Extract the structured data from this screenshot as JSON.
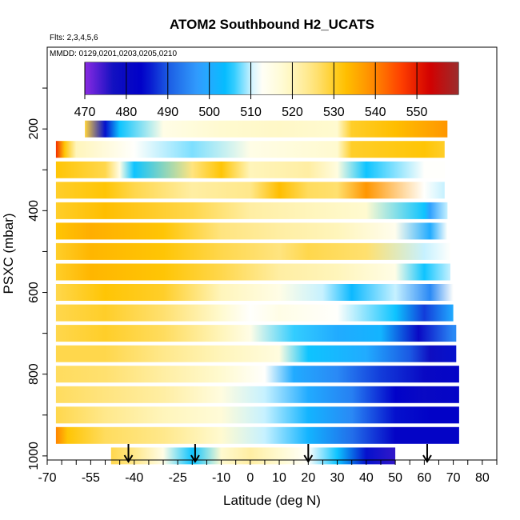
{
  "chart_data": {
    "type": "heatmap",
    "title": "ATOM2 Southbound H2_UCATS",
    "subtitle_flights": "Flts: 2,3,4,5,6",
    "subtitle_dates": "MMDD: 0129,0201,0203,0205,0210",
    "xlabel": "Latitude (deg N)",
    "ylabel": "PSXC (mbar)",
    "xlim": [
      -70,
      85
    ],
    "ylim": [
      1010,
      0
    ],
    "x_ticks": [
      -70,
      -55,
      -40,
      -25,
      -10,
      0,
      10,
      20,
      30,
      40,
      50,
      60,
      70,
      80
    ],
    "y_ticks": [
      200,
      400,
      600,
      800,
      1000
    ],
    "colorbar": {
      "min": 470,
      "max": 560,
      "ticks": [
        470,
        480,
        490,
        500,
        510,
        520,
        530,
        540,
        550
      ],
      "colors": [
        "#8a2be2",
        "#1010c0",
        "#0000c8",
        "#1e64e6",
        "#32a0ff",
        "#00c0ff",
        "#ffffff",
        "#fffacd",
        "#ffe37a",
        "#ffc400",
        "#ff8c00",
        "#ff4000",
        "#d20000",
        "#9b2d2d"
      ]
    },
    "arrows_latitude": [
      -42,
      -19,
      20,
      61
    ],
    "rows": [
      {
        "p": 200,
        "lat0": -57,
        "lat1": 68,
        "lats": [
          -57,
          -50,
          -45,
          -30,
          -10,
          10,
          30,
          35,
          50,
          68
        ],
        "values": [
          529,
          485,
          505,
          515,
          518,
          519,
          518,
          530,
          533,
          538
        ]
      },
      {
        "p": 250,
        "lat0": -67,
        "lat1": 67,
        "lats": [
          -67,
          -64,
          -60,
          -40,
          -20,
          0,
          30,
          35,
          60,
          67
        ],
        "values": [
          548,
          532,
          520,
          512,
          508,
          515,
          518,
          530,
          532,
          530
        ]
      },
      {
        "p": 300,
        "lat0": -67,
        "lat1": 67,
        "lats": [
          -67,
          -50,
          -45,
          -40,
          -20,
          -10,
          0,
          20,
          30,
          40,
          60,
          67
        ],
        "values": [
          532,
          528,
          515,
          505,
          525,
          532,
          520,
          522,
          516,
          505,
          512,
          512
        ]
      },
      {
        "p": 350,
        "lat0": -67,
        "lat1": 67,
        "lats": [
          -67,
          -50,
          -40,
          -20,
          0,
          10,
          20,
          30,
          40,
          60,
          67
        ],
        "values": [
          530,
          532,
          528,
          522,
          524,
          533,
          527,
          526,
          538,
          512,
          510
        ]
      },
      {
        "p": 400,
        "lat0": -67,
        "lat1": 68,
        "lats": [
          -67,
          -50,
          -20,
          0,
          20,
          40,
          60,
          62,
          68
        ],
        "values": [
          530,
          533,
          528,
          522,
          520,
          518,
          505,
          498,
          510
        ]
      },
      {
        "p": 450,
        "lat0": -67,
        "lat1": 68,
        "lats": [
          -67,
          -55,
          -30,
          -10,
          10,
          30,
          50,
          62,
          68
        ],
        "values": [
          532,
          535,
          532,
          525,
          522,
          520,
          514,
          500,
          512
        ]
      },
      {
        "p": 500,
        "lat0": -67,
        "lat1": 69,
        "lats": [
          -67,
          -55,
          -30,
          -10,
          10,
          20,
          40,
          60,
          69
        ],
        "values": [
          530,
          534,
          532,
          528,
          525,
          528,
          526,
          510,
          512
        ]
      },
      {
        "p": 550,
        "lat0": -67,
        "lat1": 69,
        "lats": [
          -67,
          -55,
          -30,
          -10,
          10,
          30,
          50,
          60,
          69
        ],
        "values": [
          530,
          534,
          532,
          528,
          522,
          520,
          515,
          505,
          510
        ]
      },
      {
        "p": 600,
        "lat0": -67,
        "lat1": 70,
        "lats": [
          -67,
          -50,
          -30,
          -10,
          10,
          25,
          35,
          50,
          62,
          70
        ],
        "values": [
          528,
          532,
          530,
          520,
          515,
          510,
          503,
          510,
          495,
          512
        ]
      },
      {
        "p": 650,
        "lat0": -67,
        "lat1": 70,
        "lats": [
          -67,
          -50,
          -30,
          -10,
          0,
          10,
          30,
          50,
          60,
          70
        ],
        "values": [
          528,
          530,
          526,
          518,
          512,
          515,
          512,
          505,
          488,
          500
        ]
      },
      {
        "p": 700,
        "lat0": -67,
        "lat1": 71,
        "lats": [
          -67,
          -50,
          -30,
          -10,
          0,
          15,
          30,
          45,
          58,
          70
        ],
        "values": [
          528,
          530,
          527,
          520,
          515,
          506,
          500,
          502,
          480,
          495
        ]
      },
      {
        "p": 750,
        "lat0": -67,
        "lat1": 71,
        "lats": [
          -67,
          -50,
          -30,
          -10,
          10,
          20,
          40,
          55,
          62,
          71
        ],
        "values": [
          528,
          528,
          524,
          520,
          516,
          505,
          500,
          490,
          478,
          485
        ]
      },
      {
        "p": 800,
        "lat0": -67,
        "lat1": 72,
        "lats": [
          -67,
          -50,
          -30,
          -10,
          5,
          15,
          30,
          45,
          60,
          72
        ],
        "values": [
          527,
          526,
          522,
          518,
          512,
          500,
          495,
          488,
          480,
          482
        ]
      },
      {
        "p": 850,
        "lat0": -67,
        "lat1": 72,
        "lats": [
          -67,
          -50,
          -30,
          -10,
          5,
          20,
          35,
          50,
          60,
          72
        ],
        "values": [
          527,
          525,
          522,
          516,
          510,
          500,
          494,
          484,
          480,
          482
        ]
      },
      {
        "p": 900,
        "lat0": -67,
        "lat1": 72,
        "lats": [
          -67,
          -50,
          -30,
          -10,
          5,
          20,
          35,
          50,
          62,
          72
        ],
        "values": [
          528,
          524,
          520,
          517,
          510,
          502,
          495,
          485,
          483,
          483
        ]
      },
      {
        "p": 950,
        "lat0": -67,
        "lat1": 72,
        "lats": [
          -67,
          -63,
          -50,
          -30,
          -10,
          5,
          20,
          35,
          50,
          72
        ],
        "values": [
          540,
          532,
          527,
          524,
          518,
          510,
          502,
          492,
          482,
          482
        ]
      },
      {
        "p": 1000,
        "lat0": -48,
        "lat1": 50,
        "lats": [
          -48,
          -40,
          -30,
          -20,
          -10,
          0,
          10,
          20,
          30,
          40,
          50
        ],
        "values": [
          528,
          524,
          515,
          505,
          518,
          522,
          518,
          512,
          505,
          485,
          475
        ]
      }
    ]
  }
}
